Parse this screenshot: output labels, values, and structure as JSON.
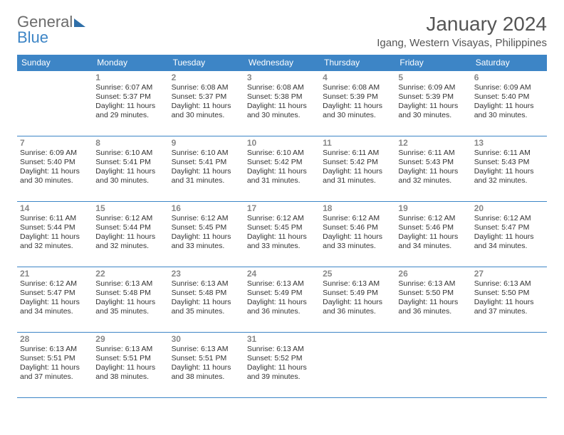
{
  "brand": {
    "part1": "General",
    "part2": "Blue"
  },
  "title": "January 2024",
  "location": "Igang, Western Visayas, Philippines",
  "style": {
    "accent": "#3d85c6",
    "header_text": "#ffffff",
    "body_text": "#333333",
    "daynum_color": "#888888",
    "border_color": "#3d85c6",
    "title_color": "#555555",
    "title_fontsize": 28,
    "location_fontsize": 15,
    "dayheader_fontsize": 12,
    "cell_fontsize": 10.5
  },
  "weekdays": [
    "Sunday",
    "Monday",
    "Tuesday",
    "Wednesday",
    "Thursday",
    "Friday",
    "Saturday"
  ],
  "weeks": [
    [
      {
        "n": "",
        "sr": "",
        "ss": "",
        "dl": ""
      },
      {
        "n": "1",
        "sr": "6:07 AM",
        "ss": "5:37 PM",
        "dl": "11 hours and 29 minutes."
      },
      {
        "n": "2",
        "sr": "6:08 AM",
        "ss": "5:37 PM",
        "dl": "11 hours and 30 minutes."
      },
      {
        "n": "3",
        "sr": "6:08 AM",
        "ss": "5:38 PM",
        "dl": "11 hours and 30 minutes."
      },
      {
        "n": "4",
        "sr": "6:08 AM",
        "ss": "5:39 PM",
        "dl": "11 hours and 30 minutes."
      },
      {
        "n": "5",
        "sr": "6:09 AM",
        "ss": "5:39 PM",
        "dl": "11 hours and 30 minutes."
      },
      {
        "n": "6",
        "sr": "6:09 AM",
        "ss": "5:40 PM",
        "dl": "11 hours and 30 minutes."
      }
    ],
    [
      {
        "n": "7",
        "sr": "6:09 AM",
        "ss": "5:40 PM",
        "dl": "11 hours and 30 minutes."
      },
      {
        "n": "8",
        "sr": "6:10 AM",
        "ss": "5:41 PM",
        "dl": "11 hours and 30 minutes."
      },
      {
        "n": "9",
        "sr": "6:10 AM",
        "ss": "5:41 PM",
        "dl": "11 hours and 31 minutes."
      },
      {
        "n": "10",
        "sr": "6:10 AM",
        "ss": "5:42 PM",
        "dl": "11 hours and 31 minutes."
      },
      {
        "n": "11",
        "sr": "6:11 AM",
        "ss": "5:42 PM",
        "dl": "11 hours and 31 minutes."
      },
      {
        "n": "12",
        "sr": "6:11 AM",
        "ss": "5:43 PM",
        "dl": "11 hours and 32 minutes."
      },
      {
        "n": "13",
        "sr": "6:11 AM",
        "ss": "5:43 PM",
        "dl": "11 hours and 32 minutes."
      }
    ],
    [
      {
        "n": "14",
        "sr": "6:11 AM",
        "ss": "5:44 PM",
        "dl": "11 hours and 32 minutes."
      },
      {
        "n": "15",
        "sr": "6:12 AM",
        "ss": "5:44 PM",
        "dl": "11 hours and 32 minutes."
      },
      {
        "n": "16",
        "sr": "6:12 AM",
        "ss": "5:45 PM",
        "dl": "11 hours and 33 minutes."
      },
      {
        "n": "17",
        "sr": "6:12 AM",
        "ss": "5:45 PM",
        "dl": "11 hours and 33 minutes."
      },
      {
        "n": "18",
        "sr": "6:12 AM",
        "ss": "5:46 PM",
        "dl": "11 hours and 33 minutes."
      },
      {
        "n": "19",
        "sr": "6:12 AM",
        "ss": "5:46 PM",
        "dl": "11 hours and 34 minutes."
      },
      {
        "n": "20",
        "sr": "6:12 AM",
        "ss": "5:47 PM",
        "dl": "11 hours and 34 minutes."
      }
    ],
    [
      {
        "n": "21",
        "sr": "6:12 AM",
        "ss": "5:47 PM",
        "dl": "11 hours and 34 minutes."
      },
      {
        "n": "22",
        "sr": "6:13 AM",
        "ss": "5:48 PM",
        "dl": "11 hours and 35 minutes."
      },
      {
        "n": "23",
        "sr": "6:13 AM",
        "ss": "5:48 PM",
        "dl": "11 hours and 35 minutes."
      },
      {
        "n": "24",
        "sr": "6:13 AM",
        "ss": "5:49 PM",
        "dl": "11 hours and 36 minutes."
      },
      {
        "n": "25",
        "sr": "6:13 AM",
        "ss": "5:49 PM",
        "dl": "11 hours and 36 minutes."
      },
      {
        "n": "26",
        "sr": "6:13 AM",
        "ss": "5:50 PM",
        "dl": "11 hours and 36 minutes."
      },
      {
        "n": "27",
        "sr": "6:13 AM",
        "ss": "5:50 PM",
        "dl": "11 hours and 37 minutes."
      }
    ],
    [
      {
        "n": "28",
        "sr": "6:13 AM",
        "ss": "5:51 PM",
        "dl": "11 hours and 37 minutes."
      },
      {
        "n": "29",
        "sr": "6:13 AM",
        "ss": "5:51 PM",
        "dl": "11 hours and 38 minutes."
      },
      {
        "n": "30",
        "sr": "6:13 AM",
        "ss": "5:51 PM",
        "dl": "11 hours and 38 minutes."
      },
      {
        "n": "31",
        "sr": "6:13 AM",
        "ss": "5:52 PM",
        "dl": "11 hours and 39 minutes."
      },
      {
        "n": "",
        "sr": "",
        "ss": "",
        "dl": ""
      },
      {
        "n": "",
        "sr": "",
        "ss": "",
        "dl": ""
      },
      {
        "n": "",
        "sr": "",
        "ss": "",
        "dl": ""
      }
    ]
  ],
  "labels": {
    "sunrise": "Sunrise: ",
    "sunset": "Sunset: ",
    "daylight": "Daylight: "
  }
}
